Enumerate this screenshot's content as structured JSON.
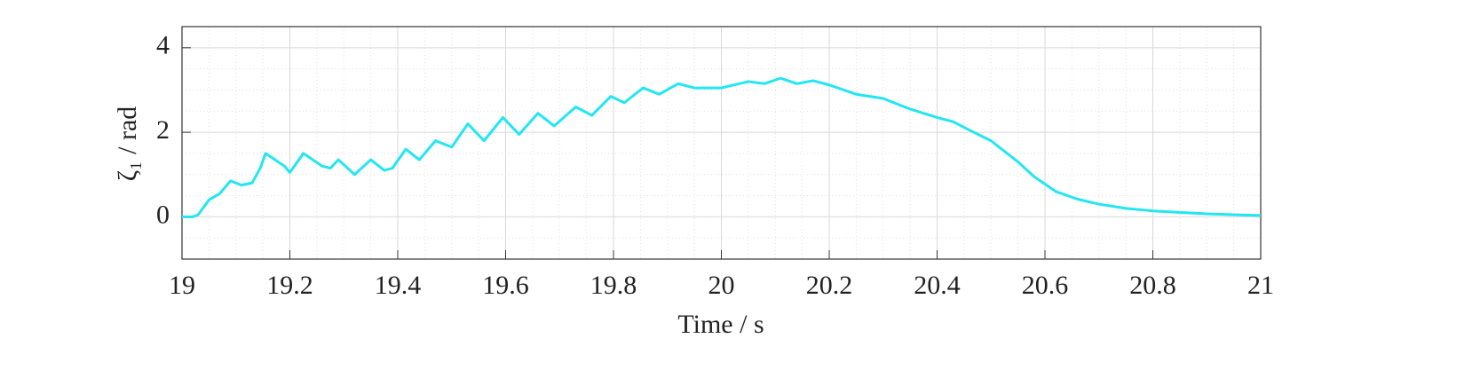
{
  "chart_data": {
    "type": "line",
    "xlabel": "Time / s",
    "ylabel": "ζ₁ / rad",
    "x": [
      19.0,
      19.02,
      19.03,
      19.05,
      19.07,
      19.09,
      19.11,
      19.13,
      19.145,
      19.155,
      19.19,
      19.2,
      19.225,
      19.26,
      19.275,
      19.29,
      19.32,
      19.35,
      19.375,
      19.39,
      19.415,
      19.44,
      19.47,
      19.5,
      19.53,
      19.56,
      19.595,
      19.625,
      19.66,
      19.69,
      19.73,
      19.76,
      19.795,
      19.82,
      19.855,
      19.885,
      19.92,
      19.95,
      20.0,
      20.05,
      20.08,
      20.11,
      20.14,
      20.17,
      20.2,
      20.25,
      20.3,
      20.35,
      20.4,
      20.43,
      20.46,
      20.5,
      20.52,
      20.55,
      20.58,
      20.62,
      20.66,
      20.7,
      20.75,
      20.8,
      20.9,
      21.0
    ],
    "series": [
      {
        "color": "#22e6f2",
        "values": [
          0,
          0,
          0.05,
          0.4,
          0.55,
          0.85,
          0.75,
          0.8,
          1.15,
          1.5,
          1.2,
          1.05,
          1.5,
          1.2,
          1.15,
          1.35,
          1.0,
          1.35,
          1.1,
          1.15,
          1.6,
          1.35,
          1.8,
          1.65,
          2.2,
          1.8,
          2.35,
          1.95,
          2.45,
          2.15,
          2.6,
          2.4,
          2.85,
          2.7,
          3.05,
          2.9,
          3.15,
          3.05,
          3.05,
          3.2,
          3.15,
          3.28,
          3.15,
          3.22,
          3.12,
          2.9,
          2.8,
          2.55,
          2.35,
          2.25,
          2.05,
          1.8,
          1.6,
          1.3,
          0.95,
          0.6,
          0.42,
          0.3,
          0.2,
          0.14,
          0.07,
          0.03
        ]
      }
    ],
    "xlim": [
      19,
      21
    ],
    "ylim": [
      -1,
      4.5
    ],
    "xticks": [
      19,
      19.2,
      19.4,
      19.6,
      19.8,
      20,
      20.2,
      20.4,
      20.6,
      20.8,
      21
    ],
    "yticks": [
      0,
      2,
      4
    ],
    "grid": true,
    "minor_grid": true
  }
}
